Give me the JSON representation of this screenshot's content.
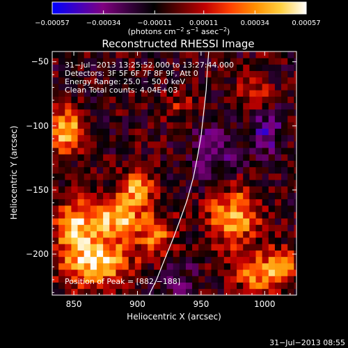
{
  "chart_data": {
    "type": "heatmap",
    "title": "Reconstructed RHESSI Image",
    "xlabel": "Heliocentric X (arcsec)",
    "ylabel": "Heliocentric Y (arcsec)",
    "xlim": [
      833,
      1025
    ],
    "ylim": [
      -232,
      -42
    ],
    "x_ticks": [
      850,
      900,
      950,
      1000
    ],
    "y_ticks": [
      -50,
      -100,
      -150,
      -200
    ],
    "x_tick_labels": [
      "850",
      "900",
      "950",
      "1000"
    ],
    "y_tick_labels": [
      "−50",
      "−100",
      "−150",
      "−200"
    ],
    "colorbar": {
      "range": [
        -0.00057,
        0.00057
      ],
      "ticks": [
        -0.00057,
        -0.00034,
        -0.00011,
        0.00011,
        0.00034,
        0.00057
      ],
      "tick_labels": [
        "−0.00057",
        "−0.00034",
        "−0.00011",
        "0.00011",
        "0.00034",
        "0.00057"
      ],
      "units_main": "(photons cm",
      "units_sup1": "−2",
      "units_mid": " s",
      "units_sup2": "−1",
      "units_mid2": " asec",
      "units_sup3": "−2",
      "units_end": ")",
      "colormap": [
        "#0000ff",
        "#4000c0",
        "#800080",
        "#3a0040",
        "#000000",
        "#600000",
        "#c00000",
        "#ff4000",
        "#ff9000",
        "#ffd040",
        "#ffffff"
      ]
    },
    "annotations": [
      "31−Jul−2013 13:25:52.000 to 13:27:44.000",
      "Detectors: 3F 5F 6F 7F 8F 9F, Att 0",
      "Energy Range: 25.0 − 50.0 keV",
      "Clean    Total counts: 4.04E+03"
    ],
    "peak_label": "Position of Peak = [882,−188]",
    "peak": [
      882,
      -188
    ],
    "limb_curve": [
      [
        909,
        -232
      ],
      [
        915,
        -220
      ],
      [
        921,
        -205
      ],
      [
        928,
        -188
      ],
      [
        934,
        -172
      ],
      [
        939,
        -158
      ],
      [
        944,
        -140
      ],
      [
        947,
        -125
      ],
      [
        950,
        -108
      ],
      [
        952,
        -90
      ],
      [
        954,
        -72
      ],
      [
        955,
        -55
      ],
      [
        956,
        -42
      ]
    ],
    "sources": [
      {
        "x": 845,
        "y": -105,
        "amp": 0.9,
        "sx": 10,
        "sy": 12
      },
      {
        "x": 850,
        "y": -175,
        "amp": 0.8,
        "sx": 12,
        "sy": 12
      },
      {
        "x": 865,
        "y": -205,
        "amp": 1.0,
        "sx": 20,
        "sy": 14
      },
      {
        "x": 885,
        "y": -170,
        "amp": 0.9,
        "sx": 14,
        "sy": 12
      },
      {
        "x": 900,
        "y": -145,
        "amp": 0.8,
        "sx": 8,
        "sy": 10
      },
      {
        "x": 915,
        "y": -185,
        "amp": 0.6,
        "sx": 10,
        "sy": 12
      },
      {
        "x": 975,
        "y": -170,
        "amp": 0.85,
        "sx": 14,
        "sy": 16
      },
      {
        "x": 995,
        "y": -215,
        "amp": 0.7,
        "sx": 12,
        "sy": 12
      },
      {
        "x": 1015,
        "y": -210,
        "amp": 0.6,
        "sx": 8,
        "sy": 10
      },
      {
        "x": 990,
        "y": -75,
        "amp": 0.4,
        "sx": 10,
        "sy": 12
      },
      {
        "x": 935,
        "y": -85,
        "amp": 0.3,
        "sx": 10,
        "sy": 10
      },
      {
        "x": 1000,
        "y": -105,
        "amp": -0.5,
        "sx": 10,
        "sy": 12
      },
      {
        "x": 960,
        "y": -120,
        "amp": -0.35,
        "sx": 14,
        "sy": 20
      },
      {
        "x": 930,
        "y": -220,
        "amp": -0.3,
        "sx": 12,
        "sy": 10
      }
    ],
    "footer_timestamp": "31−Jul−2013 08:55"
  }
}
